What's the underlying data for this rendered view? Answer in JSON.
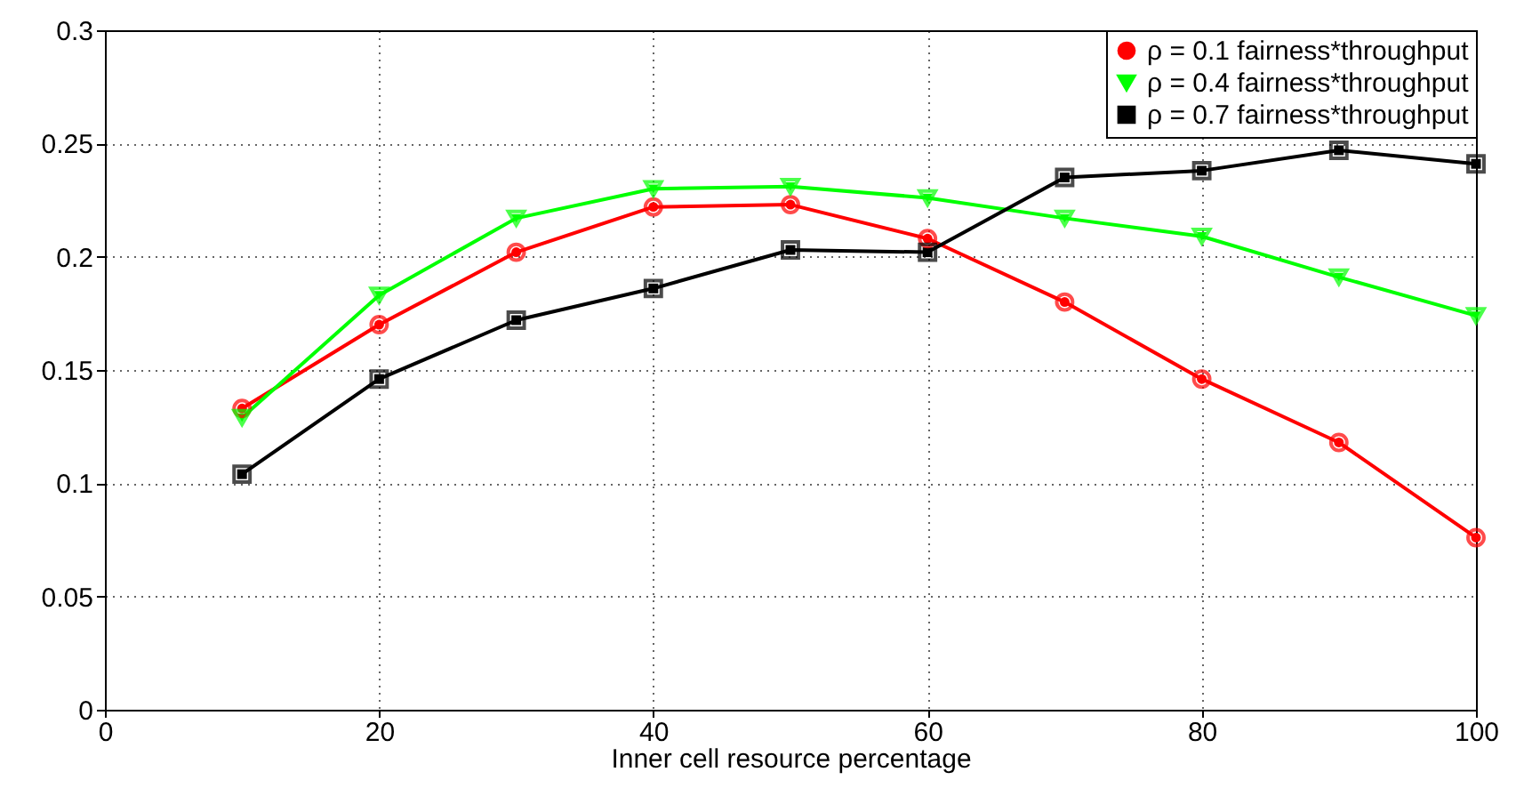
{
  "chart_data": {
    "type": "line",
    "xlabel": "Inner cell resource percentage",
    "x": [
      10,
      20,
      30,
      40,
      50,
      60,
      70,
      80,
      90,
      100
    ],
    "series": [
      {
        "name": "ρ = 0.1 fairness*throughput",
        "color": "#ff0000",
        "marker": "circle",
        "values": [
          0.133,
          0.17,
          0.202,
          0.222,
          0.223,
          0.208,
          0.18,
          0.146,
          0.118,
          0.076
        ]
      },
      {
        "name": "ρ = 0.4 fairness*throughput",
        "color": "#00ff00",
        "marker": "triangle",
        "values": [
          0.129,
          0.183,
          0.217,
          0.23,
          0.231,
          0.226,
          0.217,
          0.209,
          0.191,
          0.174
        ]
      },
      {
        "name": "ρ = 0.7 fairness*throughput",
        "color": "#000000",
        "marker": "square",
        "values": [
          0.104,
          0.146,
          0.172,
          0.186,
          0.203,
          0.202,
          0.235,
          0.238,
          0.247,
          0.241
        ]
      }
    ],
    "xlim": [
      0,
      100
    ],
    "xticks": [
      0,
      20,
      40,
      60,
      80,
      100
    ],
    "ylim": [
      0,
      0.3
    ],
    "yticks": [
      0,
      0.05,
      0.1,
      0.15,
      0.2,
      0.25,
      0.3
    ],
    "grid": true,
    "legend": "top right",
    "line_style": "solid"
  }
}
